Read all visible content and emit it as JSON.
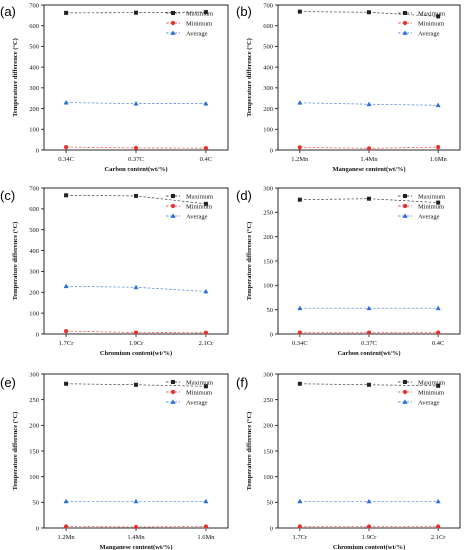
{
  "chart_data": [
    {
      "panel": "(a)",
      "type": "line",
      "xlabel": "Carbon content(wt/%)",
      "ylabel": "Temperature difference (°C)",
      "categories": [
        "0.34C",
        "0.37C",
        "0.4C"
      ],
      "ylim": [
        0,
        700
      ],
      "yticks": [
        0,
        100,
        200,
        300,
        400,
        500,
        600,
        700
      ],
      "series": [
        {
          "name": "Maximum",
          "values": [
            662,
            663,
            666
          ],
          "color": "#222222",
          "marker": "square"
        },
        {
          "name": "Minimum",
          "values": [
            14,
            10,
            9
          ],
          "color": "#e8302a",
          "marker": "circle"
        },
        {
          "name": "Average",
          "values": [
            229,
            224,
            224
          ],
          "color": "#2a6fd6",
          "marker": "triangle"
        }
      ],
      "legend": "top-right"
    },
    {
      "panel": "(b)",
      "type": "line",
      "xlabel": "Manganese content(wt/%)",
      "ylabel": "Temperature difference (°C)",
      "categories": [
        "1.2Mn",
        "1.4Mn",
        "1.6Mn"
      ],
      "ylim": [
        0,
        700
      ],
      "yticks": [
        0,
        100,
        200,
        300,
        400,
        500,
        600,
        700
      ],
      "series": [
        {
          "name": "Maximum",
          "values": [
            668,
            665,
            645
          ],
          "color": "#222222",
          "marker": "square"
        },
        {
          "name": "Minimum",
          "values": [
            13,
            8,
            14
          ],
          "color": "#e8302a",
          "marker": "circle"
        },
        {
          "name": "Average",
          "values": [
            228,
            221,
            216
          ],
          "color": "#2a6fd6",
          "marker": "triangle"
        }
      ],
      "legend": "top-right"
    },
    {
      "panel": "(c)",
      "type": "line",
      "xlabel": "Chromium content(wt/%)",
      "ylabel": "Temperature difference (°C)",
      "categories": [
        "1.7Cr",
        "1.9Cr",
        "2.1Cr"
      ],
      "ylim": [
        0,
        700
      ],
      "yticks": [
        0,
        100,
        200,
        300,
        400,
        500,
        600,
        700
      ],
      "series": [
        {
          "name": "Maximum",
          "values": [
            665,
            662,
            624
          ],
          "color": "#222222",
          "marker": "square"
        },
        {
          "name": "Minimum",
          "values": [
            14,
            7,
            6
          ],
          "color": "#e8302a",
          "marker": "circle"
        },
        {
          "name": "Average",
          "values": [
            229,
            224,
            204
          ],
          "color": "#2a6fd6",
          "marker": "triangle"
        }
      ],
      "legend": "top-right"
    },
    {
      "panel": "(d)",
      "type": "line",
      "xlabel": "Carbon content(wt/%)",
      "ylabel": "Temperature difference (°C)",
      "categories": [
        "0.34C",
        "0.37C",
        "0.4C"
      ],
      "ylim": [
        0,
        300
      ],
      "yticks": [
        0,
        50,
        100,
        150,
        200,
        250,
        300
      ],
      "series": [
        {
          "name": "Maximum",
          "values": [
            276,
            278,
            270
          ],
          "color": "#222222",
          "marker": "square"
        },
        {
          "name": "Minimum",
          "values": [
            3,
            3,
            3
          ],
          "color": "#e8302a",
          "marker": "circle"
        },
        {
          "name": "Average",
          "values": [
            53,
            53,
            53
          ],
          "color": "#2a6fd6",
          "marker": "triangle"
        }
      ],
      "legend": "top-right"
    },
    {
      "panel": "(e)",
      "type": "line",
      "xlabel": "Manganese content(wt/%)",
      "ylabel": "Temperature difference (°C)",
      "categories": [
        "1.2Mn",
        "1.4Mn",
        "1.6Mn"
      ],
      "ylim": [
        0,
        300
      ],
      "yticks": [
        0,
        50,
        100,
        150,
        200,
        250,
        300
      ],
      "series": [
        {
          "name": "Maximum",
          "values": [
            281,
            279,
            276
          ],
          "color": "#222222",
          "marker": "square"
        },
        {
          "name": "Minimum",
          "values": [
            3,
            2,
            3
          ],
          "color": "#e8302a",
          "marker": "circle"
        },
        {
          "name": "Average",
          "values": [
            52,
            52,
            52
          ],
          "color": "#2a6fd6",
          "marker": "triangle"
        }
      ],
      "legend": "top-right"
    },
    {
      "panel": "(f)",
      "type": "line",
      "xlabel": "Chromium content(wt/%)",
      "ylabel": "Temperature difference (°C)",
      "categories": [
        "1.7Cr",
        "1.9Cr",
        "2.1Cr"
      ],
      "ylim": [
        0,
        300
      ],
      "yticks": [
        0,
        50,
        100,
        150,
        200,
        250,
        300
      ],
      "series": [
        {
          "name": "Maximum",
          "values": [
            281,
            279,
            277
          ],
          "color": "#222222",
          "marker": "square"
        },
        {
          "name": "Minimum",
          "values": [
            3,
            3,
            3
          ],
          "color": "#e8302a",
          "marker": "circle"
        },
        {
          "name": "Average",
          "values": [
            52,
            52,
            52
          ],
          "color": "#2a6fd6",
          "marker": "triangle"
        }
      ],
      "legend": "top-right"
    }
  ]
}
